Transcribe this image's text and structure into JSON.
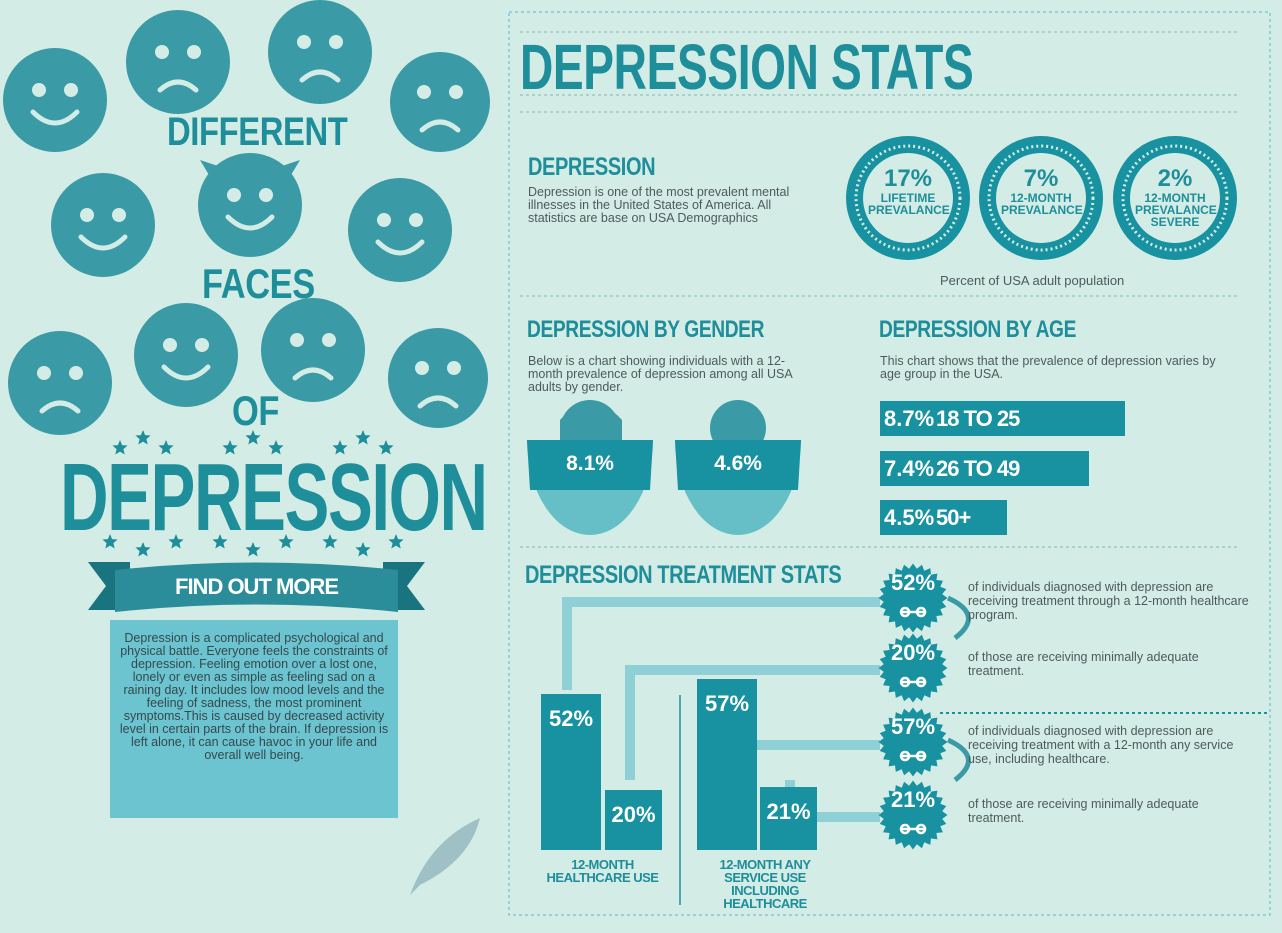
{
  "left": {
    "title_lines": [
      "DIFFERENT",
      "FACES",
      "OF",
      "DEPRESSION"
    ],
    "button": "FIND OUT MORE",
    "description": "Depression is a complicated psychological and physical battle.  Everyone feels the constraints of depression.  Feeling emotion over a lost one, lonely or even as simple as feeling sad on a raining day.  It includes low mood levels and the feeling of sadness, the most prominent symptoms.This is caused by decreased activity level in certain parts of the brain.  If depression is left alone, it can cause havoc in your life and overall well being."
  },
  "header": {
    "title": "DEPRESSION STATS"
  },
  "depression": {
    "heading": "DEPRESSION",
    "text": "Depression is one of the most prevalent mental illnesses in the United States of America.  All statistics are base on USA Demographics",
    "circles": [
      {
        "label": "17%",
        "caption": "LIFETIME PREVALANCE"
      },
      {
        "label": "7%",
        "caption": "12-MONTH PREVALANCE"
      },
      {
        "label": "2%",
        "caption": "12-MONTH PREVALANCE SEVERE"
      }
    ],
    "caption": "Percent of USA adult population"
  },
  "gender": {
    "heading": "DEPRESSION BY GENDER",
    "text": "Below is a chart showing individuals  with a 12-month prevalence of depression among all USA adults by gender.",
    "figures": [
      "8.1%",
      "4.6%"
    ]
  },
  "age": {
    "heading": "DEPRESSION BY AGE",
    "text": "This chart shows that the prevalence of depression varies by age group in the USA.",
    "bars": [
      {
        "value": 8.7,
        "label": "8.7%",
        "group": "18 TO 25"
      },
      {
        "value": 7.4,
        "label": "7.4%",
        "group": "26 TO 49"
      },
      {
        "value": 4.5,
        "label": "4.5%",
        "group": "50+"
      }
    ]
  },
  "treatment": {
    "heading": "DEPRESSION TREATMENT STATS",
    "bars": [
      {
        "value": 52,
        "label": "52%"
      },
      {
        "value": 20,
        "label": "20%"
      },
      {
        "value": 57,
        "label": "57%"
      },
      {
        "value": 21,
        "label": "21%"
      }
    ],
    "groups": [
      "12-MONTH HEALTHCARE USE",
      "12-MONTH ANY SERVICE USE INCLUDING HEALTHCARE"
    ],
    "items": [
      {
        "label": "52%",
        "text": "of individuals diagnosed with depression are receiving treatment through a 12-month healthcare program."
      },
      {
        "label": "20%",
        "text": "of those are receiving minimally adequate treatment."
      },
      {
        "label": "57%",
        "text": "of individuals diagnosed with depression are receiving treatment with a 12-month any service use, including healthcare."
      },
      {
        "label": "21%",
        "text": "of those are receiving minimally adequate treatment."
      }
    ]
  }
}
